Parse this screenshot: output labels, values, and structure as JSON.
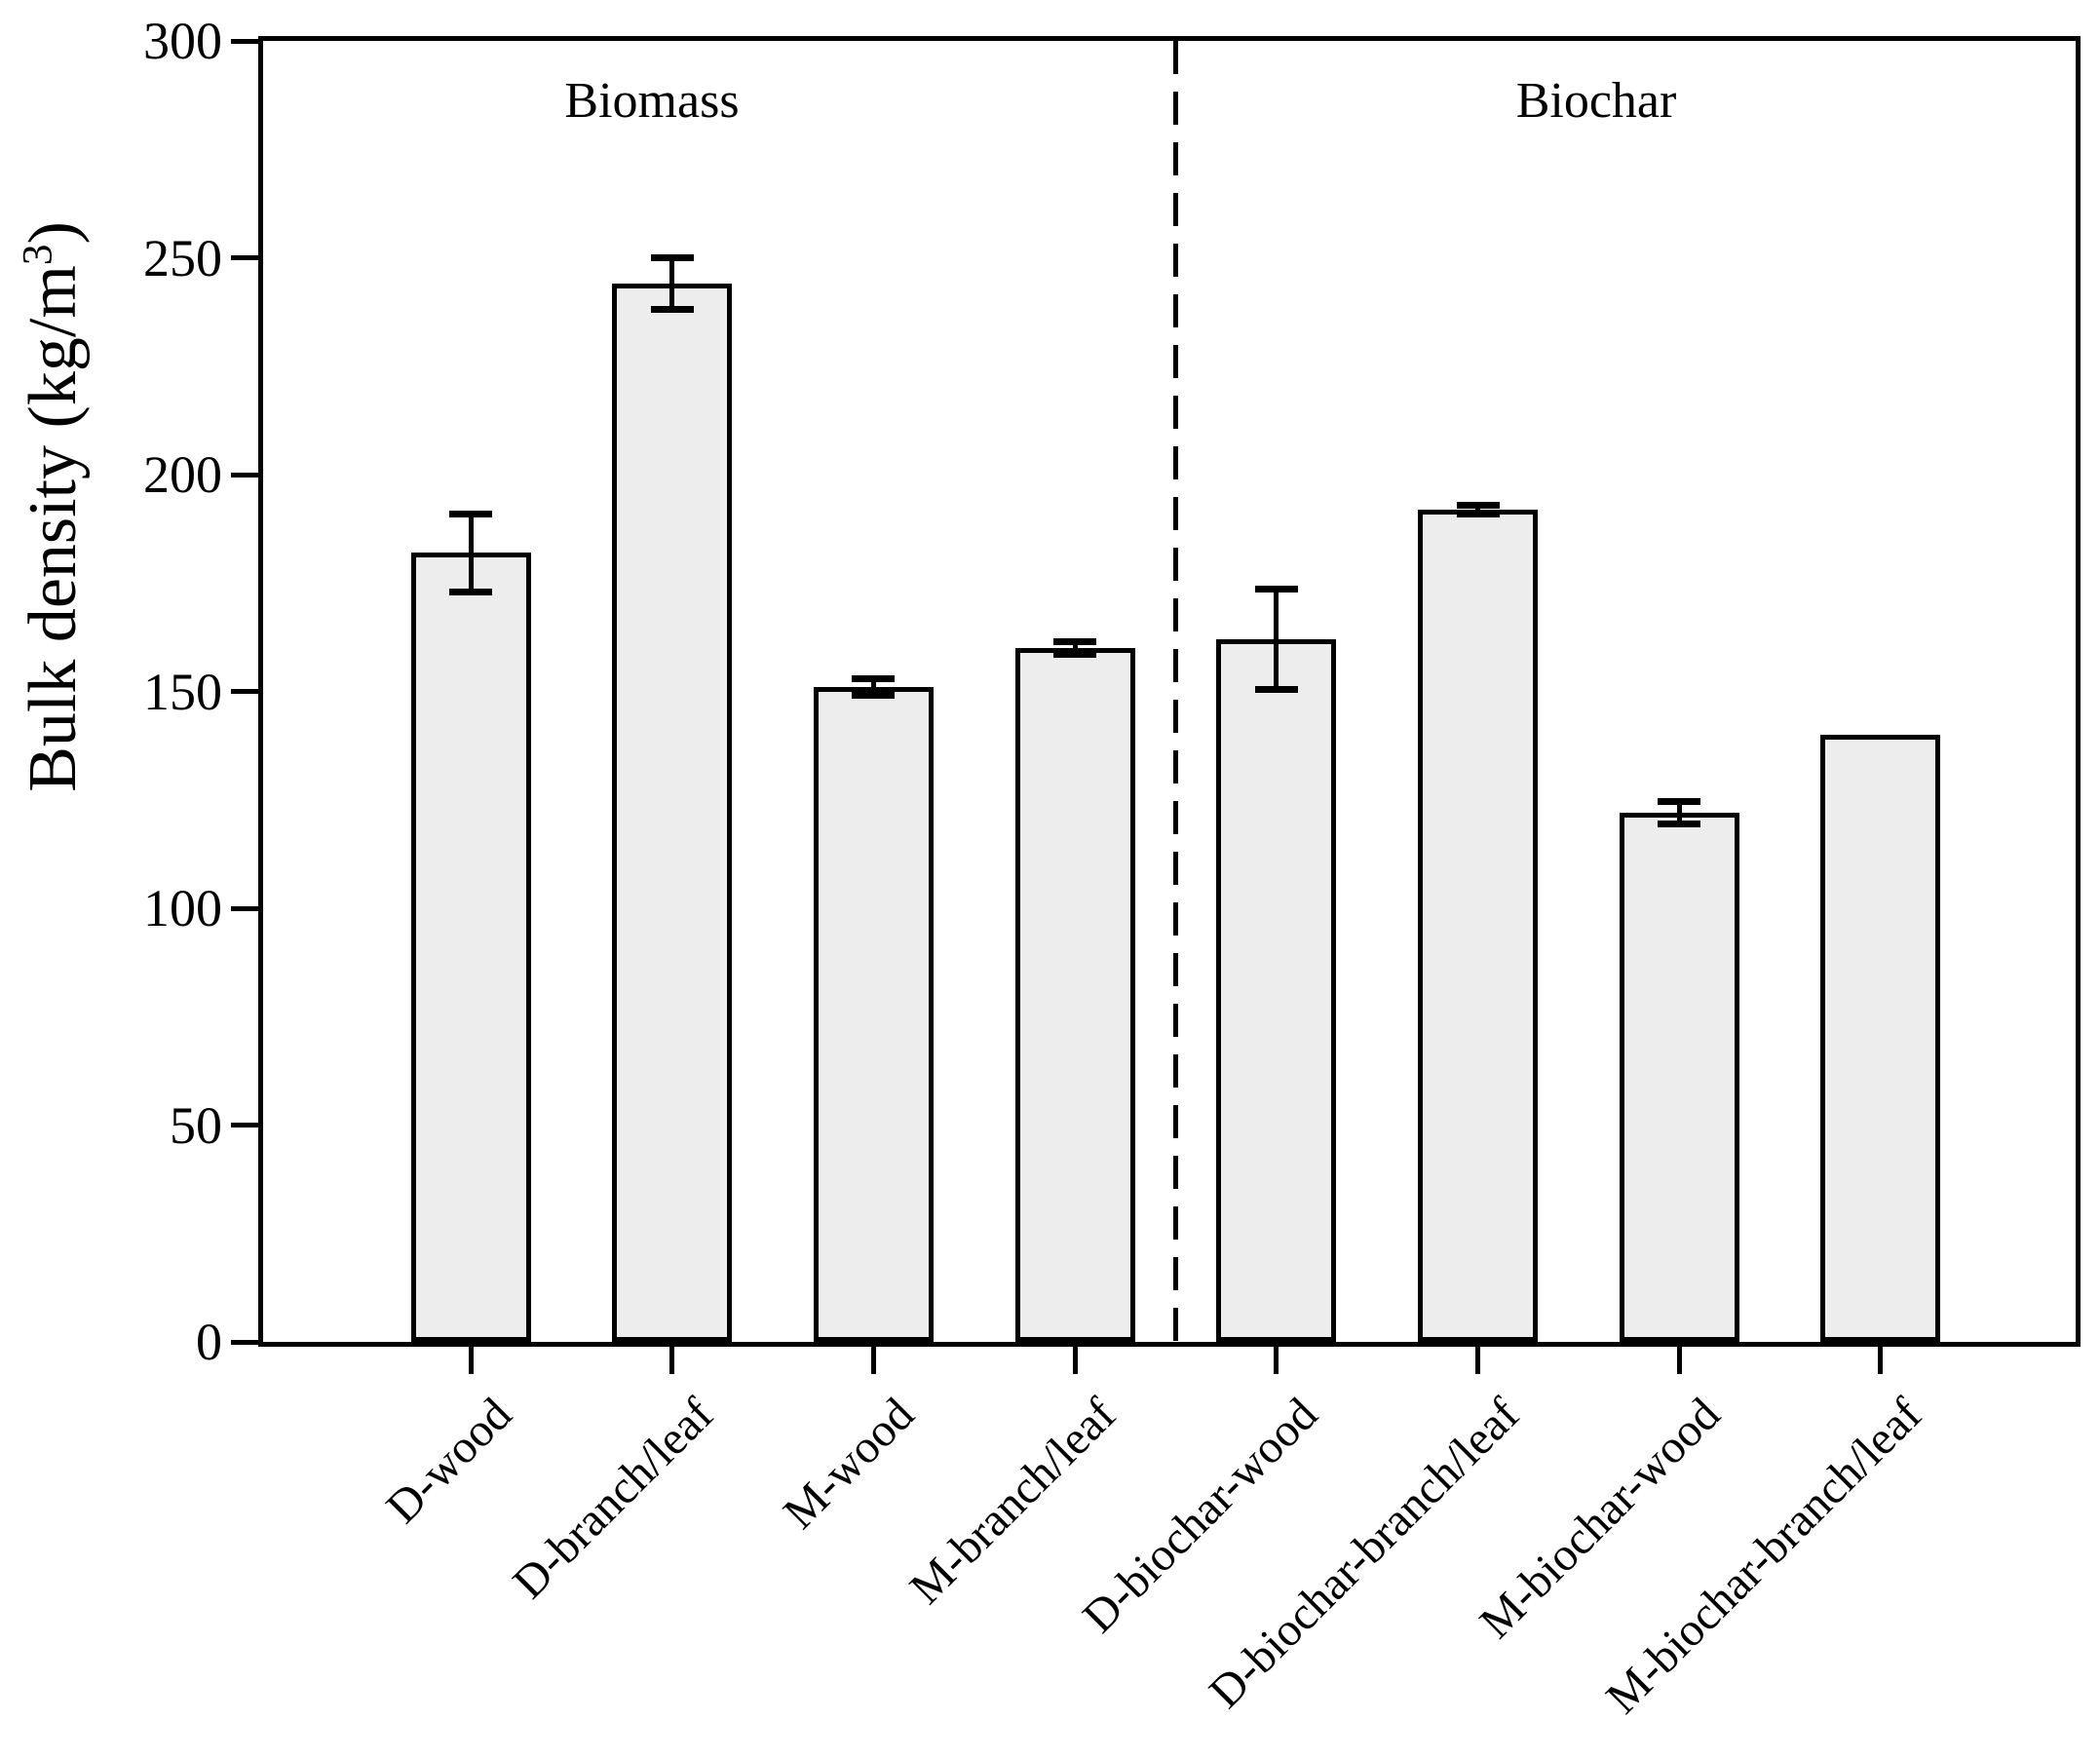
{
  "figure": {
    "ylabel_parts": {
      "prefix": "Bulk density (kg/m",
      "sup": "3",
      "suffix": ")"
    }
  },
  "chart_data": {
    "type": "bar",
    "title": "",
    "ylabel": "Bulk density (kg/m³)",
    "xlabel": "",
    "categories": [
      "D-wood",
      "D-branch/leaf",
      "M-wood",
      "M-branch/leaf",
      "D-biochar-wood",
      "D-biochar-branch/leaf",
      "M-biochar-wood",
      "M-biochar-branch/leaf"
    ],
    "values": [
      182,
      244,
      151,
      160,
      162,
      192,
      122,
      140
    ],
    "errors": [
      9,
      6,
      2,
      1.5,
      11.5,
      1,
      2.5,
      0
    ],
    "ylim": [
      0,
      300
    ],
    "yticks": [
      0,
      50,
      100,
      150,
      200,
      250,
      300
    ],
    "group_labels": [
      "Biomass",
      "Biochar"
    ],
    "divider_between": [
      "M-branch/leaf",
      "D-biochar-wood"
    ],
    "legend": "none",
    "grid": false,
    "error_caps": true,
    "bar_fill_color": "#ededed",
    "bar_edge_color": "#000000",
    "background_color": "#ffffff"
  }
}
